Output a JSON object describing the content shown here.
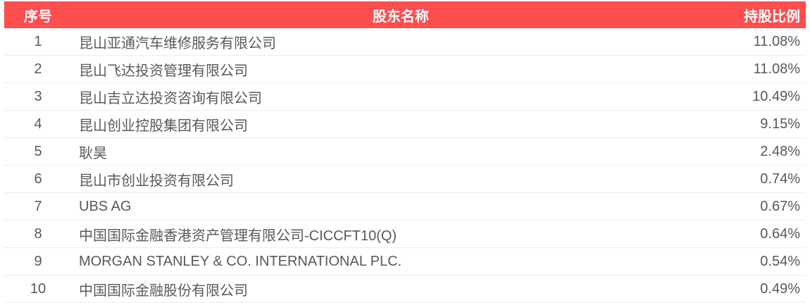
{
  "colors": {
    "header_bg": "#fc4d4f",
    "header_text": "#ffffff",
    "row_text": "#595959",
    "divider": "#e8edf3",
    "background": "#ffffff"
  },
  "table": {
    "columns": [
      {
        "key": "rank",
        "label": "序号"
      },
      {
        "key": "name",
        "label": "股东名称"
      },
      {
        "key": "percent",
        "label": "持股比例"
      }
    ],
    "rows": [
      {
        "rank": "1",
        "name": "昆山亚通汽车维修服务有限公司",
        "percent": "11.08%"
      },
      {
        "rank": "2",
        "name": "昆山飞达投资管理有限公司",
        "percent": "11.08%"
      },
      {
        "rank": "3",
        "name": "昆山吉立达投资咨询有限公司",
        "percent": "10.49%"
      },
      {
        "rank": "4",
        "name": "昆山创业控股集团有限公司",
        "percent": "9.15%"
      },
      {
        "rank": "5",
        "name": "耿昊",
        "percent": "2.48%"
      },
      {
        "rank": "6",
        "name": "昆山市创业投资有限公司",
        "percent": "0.74%"
      },
      {
        "rank": "7",
        "name": "UBS AG",
        "percent": "0.67%"
      },
      {
        "rank": "8",
        "name": "中国国际金融香港资产管理有限公司-CICCFT10(Q)",
        "percent": "0.64%"
      },
      {
        "rank": "9",
        "name": "MORGAN STANLEY & CO. INTERNATIONAL PLC.",
        "percent": "0.54%"
      },
      {
        "rank": "10",
        "name": "中国国际金融股份有限公司",
        "percent": "0.49%"
      }
    ]
  }
}
